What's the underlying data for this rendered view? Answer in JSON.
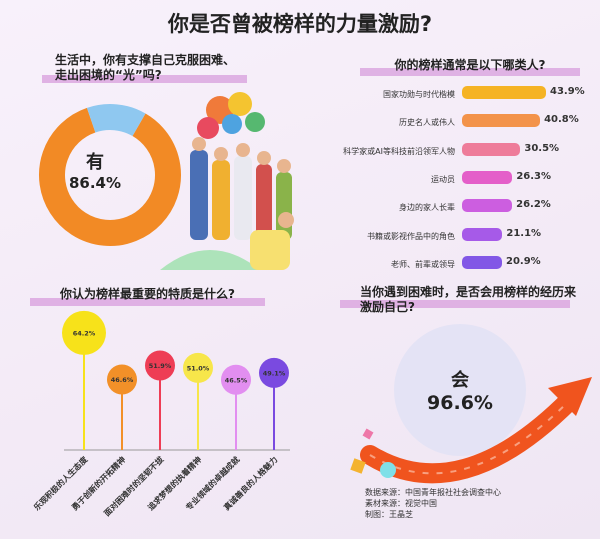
{
  "title": "你是否曾被榜样的力量激励?",
  "colors": {
    "orange": "#f28a25",
    "blue": "#8fc8f0",
    "arrow": "#f0541e"
  },
  "chart_data": [
    {
      "type": "pie",
      "title": "生活中，你有支撑自己克服困难、走出困境的“光”吗?",
      "center_label": "有",
      "center_value": "86.4%",
      "slices": [
        {
          "label": "有",
          "value": 86.4,
          "color": "#f28a25"
        },
        {
          "label": "",
          "value": 13.6,
          "color": "#8fc8f0"
        }
      ]
    },
    {
      "type": "bar",
      "title": "你的榜样通常是以下哪类人?",
      "categories": [
        "国家功勋与时代楷模",
        "历史名人或伟人",
        "科学家或AI等科技前沿领军人物",
        "运动员",
        "身边的家人长辈",
        "书籍或影视作品中的角色",
        "老师、前辈或领导"
      ],
      "values": [
        43.9,
        40.8,
        30.5,
        26.3,
        26.2,
        21.1,
        20.9
      ],
      "labels": [
        "43.9%",
        "40.8%",
        "30.5%",
        "26.3%",
        "26.2%",
        "21.1%",
        "20.9%"
      ],
      "colors": [
        "#f5b324",
        "#f3934a",
        "#ee7c9a",
        "#e45fc9",
        "#cc5ee0",
        "#a65ae8",
        "#8257e6"
      ]
    },
    {
      "type": "lollipop",
      "title": "你认为榜样最重要的特质是什么?",
      "categories": [
        "乐观积极的人生态度",
        "勇于创新的开拓精神",
        "面对困难时的坚韧不拔",
        "追求梦想的执着精神",
        "专业领域的卓越成就",
        "真诚善良的人格魅力"
      ],
      "values": [
        64.2,
        46.6,
        51.9,
        51.0,
        46.5,
        49.1
      ],
      "labels": [
        "64.2%",
        "46.6%",
        "51.9%",
        "51.0%",
        "46.5%",
        "49.1%"
      ],
      "colors": [
        "#f7e21a",
        "#f29028",
        "#ee3d55",
        "#f7e64a",
        "#e28ef0",
        "#7a4ae0"
      ]
    },
    {
      "type": "single-stat",
      "title": "当你遇到困难时，是否会用榜样的经历来激励自己?",
      "label": "会",
      "value": "96.6%"
    }
  ],
  "credits": [
    "数据来源：中国青年报社社会调查中心",
    "素材来源：视觉中国",
    "制图：王晶芝"
  ]
}
